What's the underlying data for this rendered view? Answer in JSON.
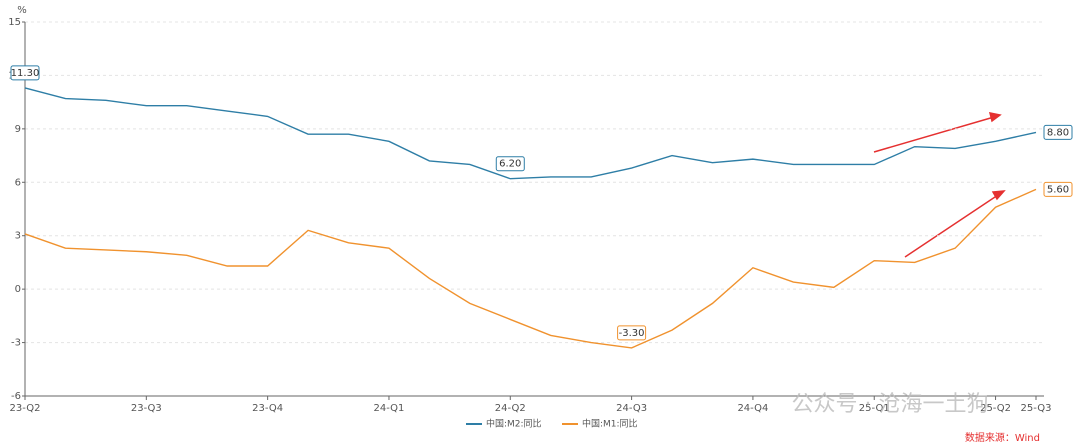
{
  "chart_data": {
    "type": "line",
    "y_unit": "%",
    "categories": [
      "23-Q2",
      null,
      null,
      "23-Q3",
      null,
      null,
      "23-Q4",
      null,
      null,
      "24-Q1",
      null,
      null,
      "24-Q2",
      null,
      null,
      "24-Q3",
      null,
      null,
      "24-Q4",
      null,
      null,
      "25-Q1",
      null,
      null,
      "25-Q2",
      "25-Q3"
    ],
    "series": [
      {
        "name": "中国:M2:同比",
        "color": "#2e7ea6",
        "values": [
          11.3,
          10.7,
          10.6,
          10.3,
          10.3,
          10.0,
          9.7,
          8.7,
          8.7,
          8.3,
          7.2,
          7.0,
          6.2,
          6.3,
          6.3,
          6.8,
          7.5,
          7.1,
          7.3,
          7.0,
          7.0,
          7.0,
          8.0,
          7.9,
          8.3,
          8.8
        ],
        "value_labels": [
          "11.30",
          null,
          null,
          null,
          null,
          null,
          null,
          null,
          null,
          null,
          null,
          null,
          "6.20",
          null,
          null,
          null,
          null,
          null,
          null,
          null,
          null,
          null,
          null,
          null,
          null,
          "8.80"
        ]
      },
      {
        "name": "中国:M1:同比",
        "color": "#f0922e",
        "values": [
          3.1,
          2.3,
          2.2,
          2.1,
          1.9,
          1.3,
          1.3,
          3.3,
          2.6,
          2.3,
          0.6,
          -0.8,
          -1.7,
          -2.6,
          -3.0,
          -3.3,
          -2.3,
          -0.8,
          1.2,
          0.4,
          0.1,
          1.6,
          1.5,
          2.3,
          4.6,
          5.6
        ],
        "value_labels": [
          null,
          null,
          null,
          null,
          null,
          null,
          null,
          null,
          null,
          null,
          null,
          null,
          null,
          null,
          null,
          "-3.30",
          null,
          null,
          null,
          null,
          null,
          null,
          null,
          null,
          null,
          "5.60"
        ]
      }
    ],
    "ylim": [
      -6,
      15
    ],
    "yticks": [
      -6,
      -3,
      0,
      3,
      6,
      9,
      12,
      15
    ],
    "grid": true,
    "source": "数据来源：Wind",
    "watermark": "公众号 · 沧海一土狗"
  }
}
